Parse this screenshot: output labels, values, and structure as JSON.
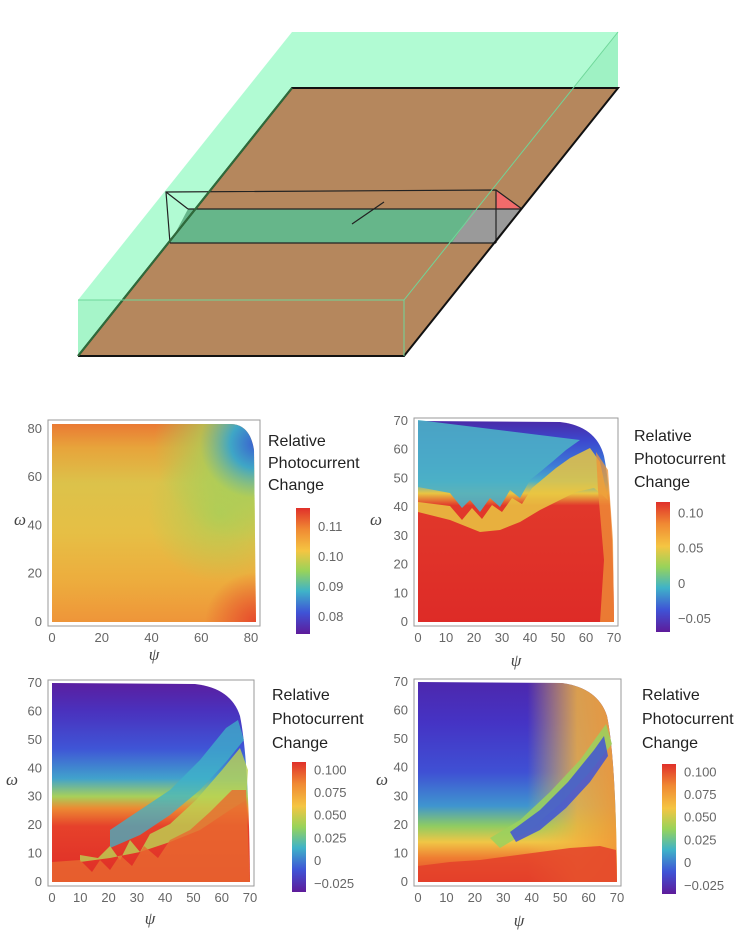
{
  "colors": {
    "slab_top": "#b5875d",
    "slab_edge": "#333333",
    "medium": "#adfbd1",
    "strip": "#66b68a",
    "end_gray": "#9a9a9a",
    "end_red": "#f16b6b",
    "colorbar_stops": [
      "#5e1b9a",
      "#3f53d6",
      "#3fb3c8",
      "#98d35a",
      "#f5c542",
      "#f08a33",
      "#e0302a"
    ]
  },
  "chart_data": [
    {
      "type": "heatmap",
      "xlabel": "ψ",
      "ylabel": "ω",
      "xlim": [
        0,
        82
      ],
      "ylim": [
        0,
        82
      ],
      "xticks": [
        "0",
        "20",
        "40",
        "60",
        "80"
      ],
      "yticks": [
        "0",
        "20",
        "40",
        "60",
        "80"
      ],
      "colorbar_title": [
        "Relative",
        "Photocurrent",
        "Change"
      ],
      "colorbar_ticks": [
        "0.11",
        "0.10",
        "0.09",
        "0.08"
      ],
      "colorbar_range": [
        0.074,
        0.116
      ],
      "colorbar_tick_values": [
        0.11,
        0.1,
        0.09,
        0.08
      ]
    },
    {
      "type": "heatmap",
      "xlabel": "ψ",
      "ylabel": "ω",
      "xlim": [
        0,
        70
      ],
      "ylim": [
        0,
        70
      ],
      "xticks": [
        "0",
        "10",
        "20",
        "30",
        "40",
        "50",
        "60",
        "70"
      ],
      "yticks": [
        "0",
        "10",
        "20",
        "30",
        "40",
        "50",
        "60",
        "70"
      ],
      "colorbar_title": [
        "Relative",
        "Photocurrent",
        "Change"
      ],
      "colorbar_ticks": [
        "0.10",
        "0.05",
        "0",
        "−0.05"
      ],
      "colorbar_range": [
        -0.07,
        0.115
      ],
      "colorbar_tick_values": [
        0.1,
        0.05,
        0,
        -0.05
      ]
    },
    {
      "type": "heatmap",
      "xlabel": "ψ",
      "ylabel": "ω",
      "xlim": [
        0,
        70
      ],
      "ylim": [
        0,
        70
      ],
      "xticks": [
        "0",
        "10",
        "20",
        "30",
        "40",
        "50",
        "60",
        "70"
      ],
      "yticks": [
        "0",
        "10",
        "20",
        "30",
        "40",
        "50",
        "60",
        "70"
      ],
      "colorbar_title": [
        "Relative",
        "Photocurrent",
        "Change"
      ],
      "colorbar_ticks": [
        "0.100",
        "0.075",
        "0.050",
        "0.025",
        "0",
        "−0.025"
      ],
      "colorbar_range": [
        -0.035,
        0.108
      ],
      "colorbar_tick_values": [
        0.1,
        0.075,
        0.05,
        0.025,
        0,
        -0.025
      ]
    },
    {
      "type": "heatmap",
      "xlabel": "ψ",
      "ylabel": "ω",
      "xlim": [
        0,
        70
      ],
      "ylim": [
        0,
        70
      ],
      "xticks": [
        "0",
        "10",
        "20",
        "30",
        "40",
        "50",
        "60",
        "70"
      ],
      "yticks": [
        "0",
        "10",
        "20",
        "30",
        "40",
        "50",
        "60",
        "70"
      ],
      "colorbar_title": [
        "Relative",
        "Photocurrent",
        "Change"
      ],
      "colorbar_ticks": [
        "0.100",
        "0.075",
        "0.050",
        "0.025",
        "0",
        "−0.025"
      ],
      "colorbar_range": [
        -0.035,
        0.108
      ],
      "colorbar_tick_values": [
        0.1,
        0.075,
        0.05,
        0.025,
        0,
        -0.025
      ]
    }
  ]
}
